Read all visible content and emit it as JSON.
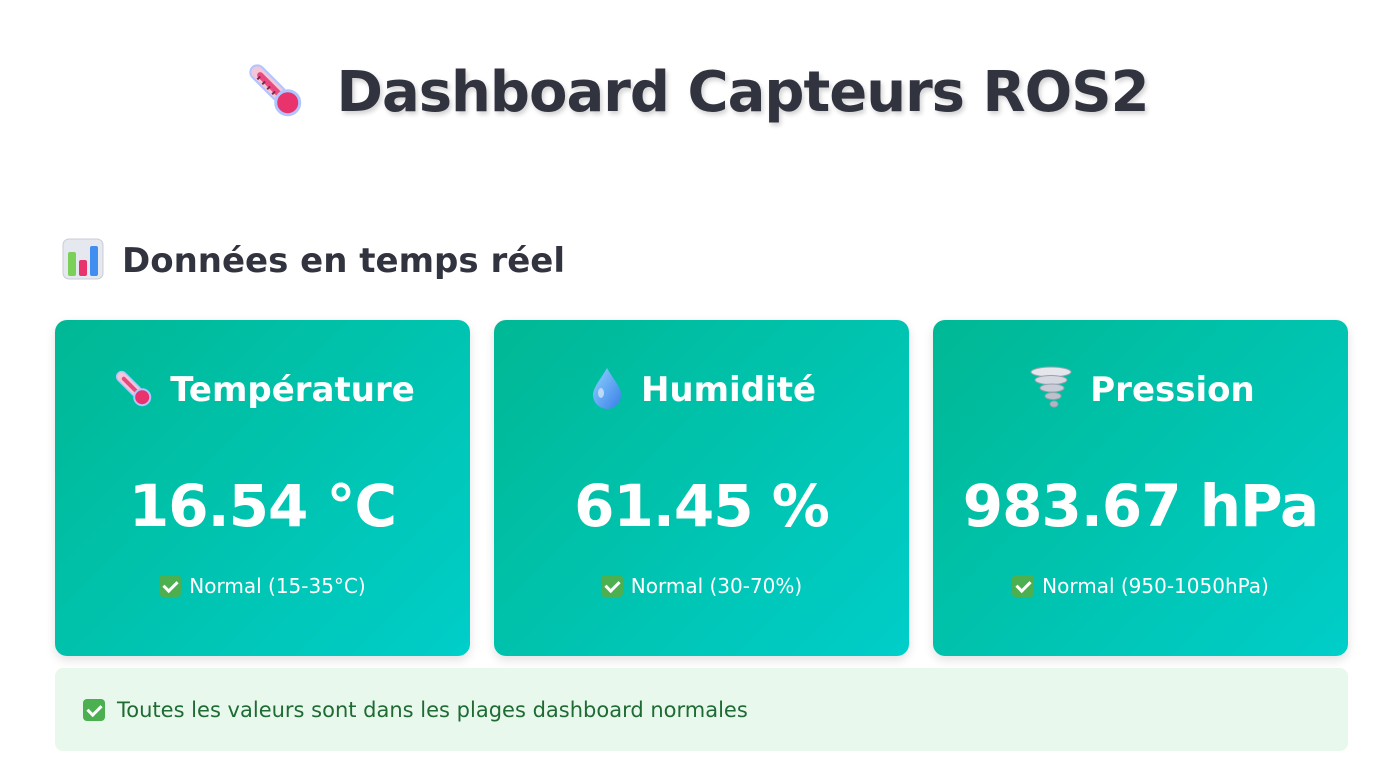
{
  "header": {
    "title": "Dashboard Capteurs ROS2",
    "icon": "thermometer-icon"
  },
  "section": {
    "title": "Données en temps réel",
    "icon": "bar-chart-icon"
  },
  "cards": [
    {
      "label": "Température",
      "icon": "thermometer-icon",
      "value": "16.54 °C",
      "status": "Normal (15-35°C)",
      "status_icon": "check-icon"
    },
    {
      "label": "Humidité",
      "icon": "droplet-icon",
      "value": "61.45 %",
      "status": "Normal (30-70%)",
      "status_icon": "check-icon"
    },
    {
      "label": "Pression",
      "icon": "tornado-icon",
      "value": "983.67 hPa",
      "status": "Normal (950-1050hPa)",
      "status_icon": "check-icon"
    }
  ],
  "alert": {
    "text": "Toutes les valeurs sont dans les plages dashboard normales",
    "icon": "check-icon"
  },
  "colors": {
    "card_gradient_start": "#00b894",
    "card_gradient_end": "#00cec9",
    "alert_bg": "#e8f8ec",
    "alert_text": "#1e6b34",
    "check_green": "#4caf50"
  }
}
